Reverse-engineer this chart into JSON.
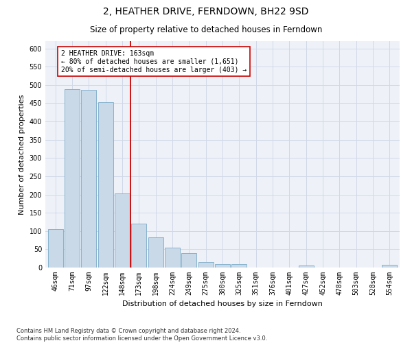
{
  "title": "2, HEATHER DRIVE, FERNDOWN, BH22 9SD",
  "subtitle": "Size of property relative to detached houses in Ferndown",
  "xlabel": "Distribution of detached houses by size in Ferndown",
  "ylabel": "Number of detached properties",
  "categories": [
    "46sqm",
    "71sqm",
    "97sqm",
    "122sqm",
    "148sqm",
    "173sqm",
    "198sqm",
    "224sqm",
    "249sqm",
    "275sqm",
    "300sqm",
    "325sqm",
    "351sqm",
    "376sqm",
    "401sqm",
    "427sqm",
    "452sqm",
    "478sqm",
    "503sqm",
    "528sqm",
    "554sqm"
  ],
  "values": [
    105,
    488,
    487,
    453,
    202,
    120,
    82,
    55,
    40,
    15,
    10,
    10,
    0,
    0,
    0,
    5,
    0,
    0,
    0,
    0,
    7
  ],
  "bar_color": "#c9d9e8",
  "bar_edgecolor": "#7aaac8",
  "vline_x": 4.5,
  "vline_color": "#cc0000",
  "annotation_text": "2 HEATHER DRIVE: 163sqm\n← 80% of detached houses are smaller (1,651)\n20% of semi-detached houses are larger (403) →",
  "annotation_box_color": "#ffffff",
  "annotation_box_edgecolor": "#cc0000",
  "ylim": [
    0,
    620
  ],
  "yticks": [
    0,
    50,
    100,
    150,
    200,
    250,
    300,
    350,
    400,
    450,
    500,
    550,
    600
  ],
  "grid_color": "#d0d8e8",
  "background_color": "#eef2f8",
  "footer": "Contains HM Land Registry data © Crown copyright and database right 2024.\nContains public sector information licensed under the Open Government Licence v3.0.",
  "title_fontsize": 10,
  "subtitle_fontsize": 8.5,
  "xlabel_fontsize": 8,
  "ylabel_fontsize": 8,
  "tick_fontsize": 7,
  "annotation_fontsize": 7
}
